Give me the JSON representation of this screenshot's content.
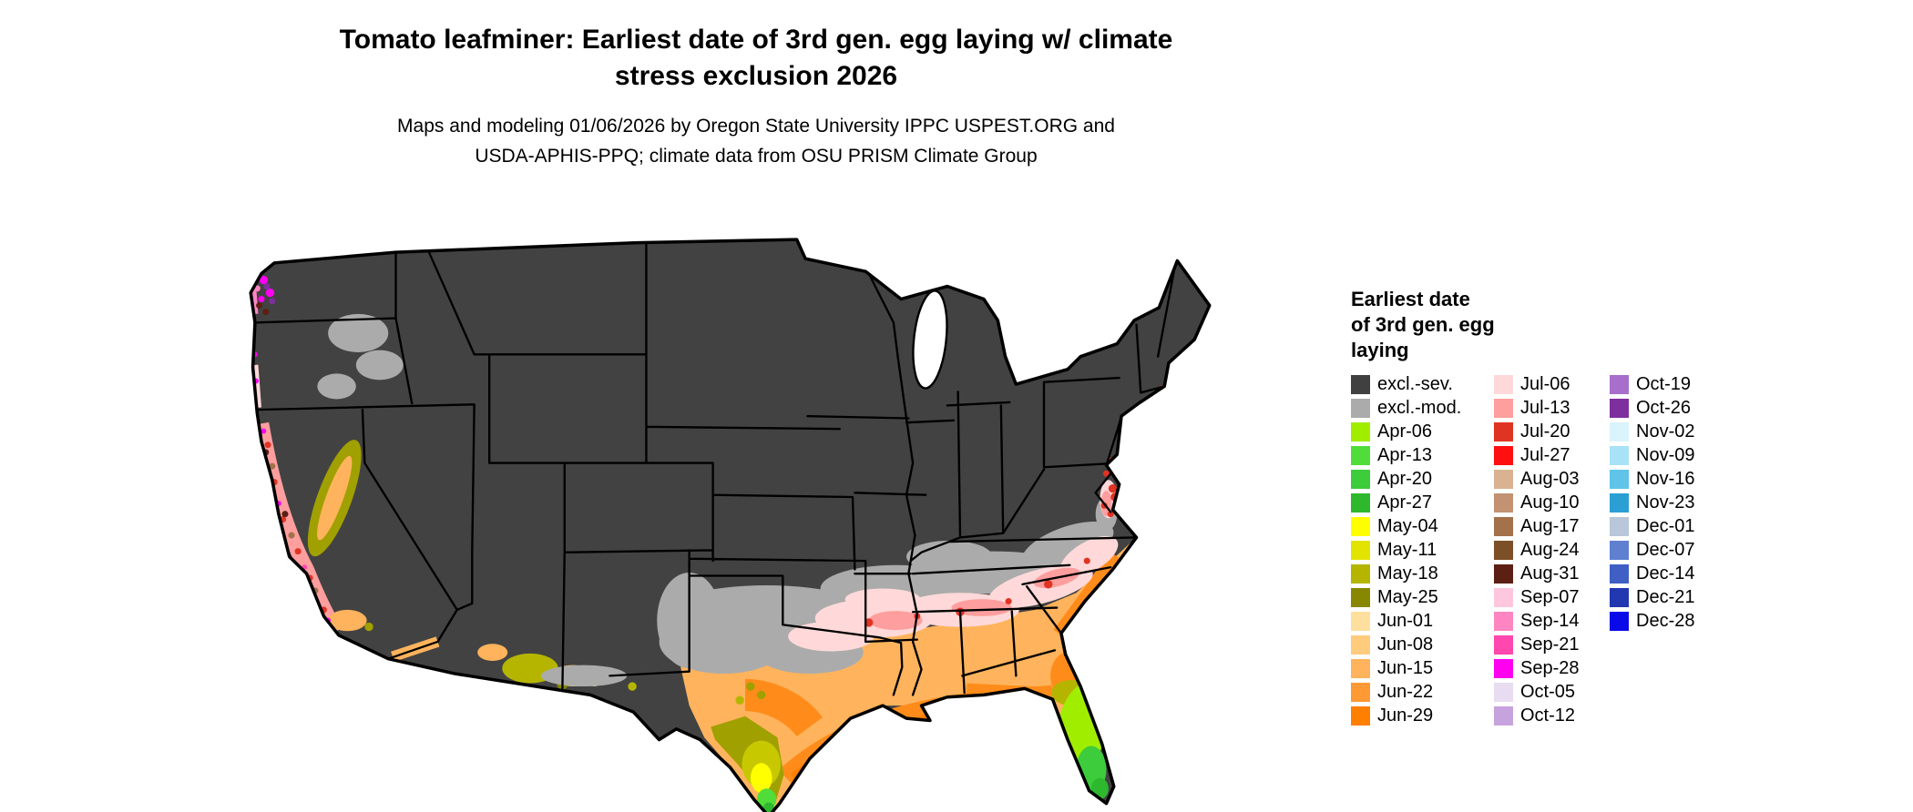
{
  "title": {
    "line1": "Tomato leafminer: Earliest date of 3rd gen. egg laying w/ climate",
    "line2": "stress exclusion 2026"
  },
  "subtitle": {
    "line1": "Maps and modeling 01/06/2026 by Oregon State University IPPC USPEST.ORG and",
    "line2": "USDA-APHIS-PPQ; climate data from OSU PRISM Climate Group"
  },
  "map": {
    "name": "contiguous-us-earliest-date-map",
    "base_color": "#424242",
    "border_color": "#000000",
    "background": "#ffffff"
  },
  "legend": {
    "title_lines": [
      "Earliest date",
      "of 3rd gen. egg",
      "laying"
    ],
    "columns": [
      {
        "entries": [
          {
            "label": "excl.-sev.",
            "color": "#404040"
          },
          {
            "label": "excl.-mod.",
            "color": "#ababab"
          },
          {
            "label": "Apr-06",
            "color": "#a1ed00"
          },
          {
            "label": "Apr-13",
            "color": "#50dd3a"
          },
          {
            "label": "Apr-20",
            "color": "#3ccc3c"
          },
          {
            "label": "Apr-27",
            "color": "#2eb82e"
          },
          {
            "label": "May-04",
            "color": "#ffff00"
          },
          {
            "label": "May-11",
            "color": "#e3e300"
          },
          {
            "label": "May-18",
            "color": "#b5b500"
          },
          {
            "label": "May-25",
            "color": "#878700"
          },
          {
            "label": "Jun-01",
            "color": "#ffdf9e"
          },
          {
            "label": "Jun-08",
            "color": "#ffcc7d"
          },
          {
            "label": "Jun-15",
            "color": "#ffb35c"
          },
          {
            "label": "Jun-22",
            "color": "#ff9933"
          },
          {
            "label": "Jun-29",
            "color": "#ff7f00"
          }
        ]
      },
      {
        "entries": [
          {
            "label": "Jul-06",
            "color": "#ffd9d9"
          },
          {
            "label": "Jul-13",
            "color": "#ff9e9e"
          },
          {
            "label": "Jul-20",
            "color": "#e03423"
          },
          {
            "label": "Jul-27",
            "color": "#ff0f0f"
          },
          {
            "label": "Aug-03",
            "color": "#d9b391"
          },
          {
            "label": "Aug-10",
            "color": "#c29272"
          },
          {
            "label": "Aug-17",
            "color": "#a3714a"
          },
          {
            "label": "Aug-24",
            "color": "#7d4f26"
          },
          {
            "label": "Aug-31",
            "color": "#5c1f14"
          },
          {
            "label": "Sep-07",
            "color": "#ffc7dd"
          },
          {
            "label": "Sep-14",
            "color": "#ff85c2"
          },
          {
            "label": "Sep-21",
            "color": "#ff47ad"
          },
          {
            "label": "Sep-28",
            "color": "#ff00f0"
          },
          {
            "label": "Oct-05",
            "color": "#e8dcf0"
          },
          {
            "label": "Oct-12",
            "color": "#c7a3dd"
          }
        ]
      },
      {
        "entries": [
          {
            "label": "Oct-19",
            "color": "#a86ecb"
          },
          {
            "label": "Oct-26",
            "color": "#7d2f9e"
          },
          {
            "label": "Nov-02",
            "color": "#daf4fd"
          },
          {
            "label": "Nov-09",
            "color": "#a8e2f7"
          },
          {
            "label": "Nov-16",
            "color": "#5fc4e8"
          },
          {
            "label": "Nov-23",
            "color": "#2b9fd4"
          },
          {
            "label": "Dec-01",
            "color": "#b8c7d9"
          },
          {
            "label": "Dec-07",
            "color": "#5f7fd1"
          },
          {
            "label": "Dec-14",
            "color": "#3f5fc4"
          },
          {
            "label": "Dec-21",
            "color": "#2238b0"
          },
          {
            "label": "Dec-28",
            "color": "#0a0ae8"
          }
        ]
      }
    ]
  }
}
